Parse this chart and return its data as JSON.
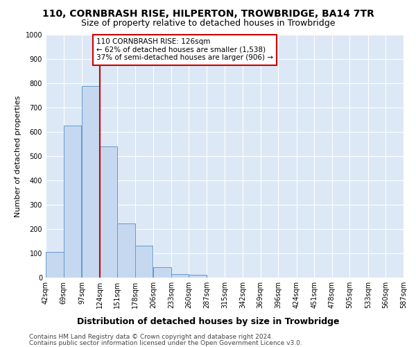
{
  "title": "110, CORNBRASH RISE, HILPERTON, TROWBRIDGE, BA14 7TR",
  "subtitle": "Size of property relative to detached houses in Trowbridge",
  "xlabel": "Distribution of detached houses by size in Trowbridge",
  "ylabel": "Number of detached properties",
  "bar_values": [
    105,
    625,
    790,
    540,
    222,
    132,
    42,
    15,
    12,
    0,
    0,
    0,
    0,
    0,
    0,
    0,
    0,
    0,
    0,
    0
  ],
  "bin_labels": [
    "42sqm",
    "69sqm",
    "97sqm",
    "124sqm",
    "151sqm",
    "178sqm",
    "206sqm",
    "233sqm",
    "260sqm",
    "287sqm",
    "315sqm",
    "342sqm",
    "369sqm",
    "396sqm",
    "424sqm",
    "451sqm",
    "478sqm",
    "505sqm",
    "533sqm",
    "560sqm",
    "587sqm"
  ],
  "bin_edges": [
    42,
    69,
    97,
    124,
    151,
    178,
    206,
    233,
    260,
    287,
    315,
    342,
    369,
    396,
    424,
    451,
    478,
    505,
    533,
    560,
    587
  ],
  "bar_color": "#c5d8f0",
  "bar_edge_color": "#6699cc",
  "vline_x": 124,
  "vline_color": "#cc0000",
  "annotation_text": "110 CORNBRASH RISE: 126sqm\n← 62% of detached houses are smaller (1,538)\n37% of semi-detached houses are larger (906) →",
  "annotation_box_color": "#ffffff",
  "annotation_box_edge": "#cc0000",
  "ylim": [
    0,
    1000
  ],
  "yticks": [
    0,
    100,
    200,
    300,
    400,
    500,
    600,
    700,
    800,
    900,
    1000
  ],
  "background_color": "#dce8f5",
  "grid_color": "#ffffff",
  "footer_line1": "Contains HM Land Registry data © Crown copyright and database right 2024.",
  "footer_line2": "Contains public sector information licensed under the Open Government Licence v3.0.",
  "title_fontsize": 10,
  "subtitle_fontsize": 9,
  "xlabel_fontsize": 9,
  "ylabel_fontsize": 8,
  "tick_fontsize": 7,
  "footer_fontsize": 6.5,
  "annotation_fontsize": 7.5
}
